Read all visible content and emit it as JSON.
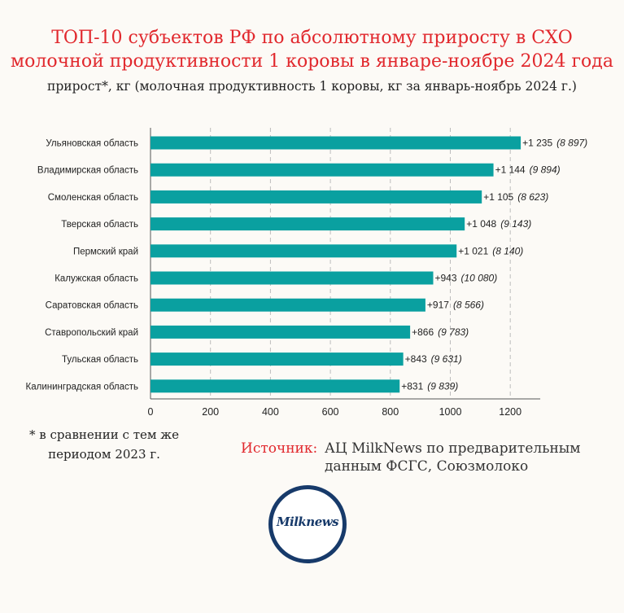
{
  "title_line1": "ТОП-10 субъектов РФ по абсолютному приросту в СХО",
  "title_line2": "молочной продуктивности 1 коровы в январе-ноябре 2024 года",
  "subtitle": "прирост*, кг (молочная продуктивность 1 коровы, кг за январь-ноябрь 2024 г.)",
  "note_line1": "* в сравнении с тем же",
  "note_line2": "периодом 2023 г.",
  "source_label": "Источник:",
  "source_text": "АЦ MilkNews по предварительным данным ФСГС, Союзмолоко",
  "logo_text": "Milknews",
  "colors": {
    "bar": "#0aa0a0",
    "title": "#e1282d",
    "logo": "#173a6a"
  },
  "chart_data": {
    "type": "bar",
    "orientation": "horizontal",
    "categories": [
      "Ульяновская область",
      "Владимирская область",
      "Смоленская область",
      "Тверская область",
      "Пермский край",
      "Калужская область",
      "Саратовская область",
      "Ставропольский край",
      "Тульская область",
      "Калининградская область"
    ],
    "values": [
      1235,
      1144,
      1105,
      1048,
      1021,
      943,
      917,
      866,
      843,
      831
    ],
    "value_labels": [
      "+1 235",
      "+1 144",
      "+1 105",
      "+1 048",
      "+1 021",
      "+943",
      "+917",
      "+866",
      "+843",
      "+831"
    ],
    "secondary_labels": [
      "(8 897)",
      "(9 894)",
      "(8 623)",
      "(9 143)",
      "(8 140)",
      "(10 080)",
      "(8 566)",
      "(9 783)",
      "(9 631)",
      "(9 839)"
    ],
    "xlim": [
      0,
      1300
    ],
    "xticks": [
      0,
      200,
      400,
      600,
      800,
      1000,
      1200
    ],
    "grid": "vertical dashed"
  }
}
